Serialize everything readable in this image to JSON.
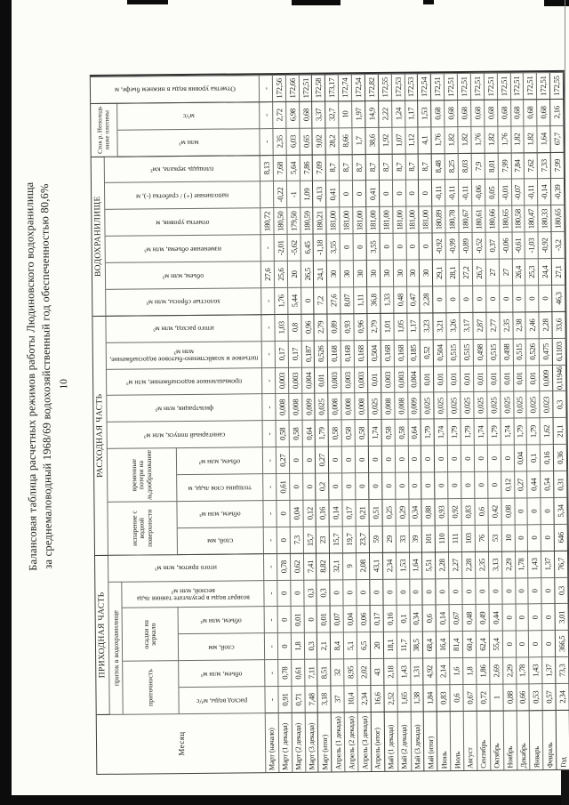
{
  "page_number": "10",
  "title": {
    "line1": "Балансовая таблица расчетных режимов работы Людиновского водохранилища",
    "line2": "за среднемаловодный 1968/69 водохозяйственный год обеспеченностью 80,6%"
  },
  "table": {
    "headers": {
      "month": "Месяц",
      "prihod": {
        "label": "ПРИХОДНАЯ ЧАСТЬ",
        "pritok_group": "приток в водохранилище",
        "pritochnost": "приточность",
        "rashod_vody": "расход воды, м³/с",
        "pritochnost_obem": "объем, млн м³",
        "osadki": "осадки на зеркало",
        "osadki_sloy": "слой, мм",
        "osadki_obem": "объем, млн м³",
        "vozvrat": "возврат воды в результате таяния льда весной, млн м³",
        "itogo_pritok": "итого приток, млн м³"
      },
      "rashod": {
        "label": "РАСХОДНАЯ ЧАСТЬ",
        "isparenie": "испарение с водной поверхности",
        "isp_sloy": "слой, мм",
        "isp_obem": "объем, млн м³",
        "poteri": "временные потери на льдообразование",
        "tolschina": "толщина слоя льда, м",
        "poteri_obem": "объем, млн м³",
        "sanitarny": "санитарный попуск, млн м³",
        "filtracia": "фильтрация, млн м³",
        "prom": "промышленное водоснабжение, млн м³",
        "pitevoe": "питьевое и хозяйственно-бытовое водоснабжение, млн м³",
        "itogo_rashod": "итого расход, млн м³"
      },
      "vdhr": {
        "label": "ВОДОХРАНИЛИЩЕ",
        "holostye": "холостые сбросы, млн м³",
        "obem": "объем, млн м³",
        "izmenenie": "изменение объема, млн м³",
        "otmetka": "отметка уровня, м",
        "napolnenie": "наполнение (+) / сработка (-), м",
        "ploschad": "площадь зеркала, км²"
      },
      "stok": {
        "label": "Сток р. Неполодь ниже плотины",
        "mln": "млн м³",
        "m3s": "м³/с"
      },
      "otmetka_bief": "Отметка уровня воды в нижнем бьефе, м"
    },
    "rows": [
      {
        "month": "Март (начало)",
        "values": [
          "-",
          "-",
          "-",
          "-",
          "-",
          "-",
          "-",
          "-",
          "-",
          "-",
          "-",
          "-",
          "-",
          "-",
          "-",
          "-",
          "27,6",
          "-",
          "180,72",
          "",
          "8,13",
          "-",
          "-",
          "-"
        ]
      },
      {
        "month": "Март (1 декада)",
        "values": [
          "0,91",
          "0,78",
          "0",
          "0",
          "0",
          "0,78",
          "0",
          "0",
          "0,61",
          "0,27",
          "0,58",
          "0,008",
          "0,003",
          "0,17",
          "1,03",
          "1,76",
          "25,6",
          "-2,01",
          "180,50",
          "-0,22",
          "7,68",
          "2,35",
          "2,72",
          "172,56"
        ]
      },
      {
        "month": "Март (2 декада)",
        "values": [
          "0,71",
          "0,61",
          "1,8",
          "0,01",
          "0",
          "0,62",
          "7,3",
          "0,04",
          "0",
          "0",
          "0,58",
          "0,008",
          "0,003",
          "0,17",
          "0,8",
          "5,44",
          "20",
          "-5,62",
          "179,50",
          "-1",
          "5,64",
          "6,03",
          "6,98",
          "172,66"
        ]
      },
      {
        "month": "Март (3 декада)",
        "values": [
          "7,48",
          "7,11",
          "0,3",
          "0",
          "0,3",
          "7,41",
          "15,7",
          "0,12",
          "0",
          "0",
          "0,64",
          "0,009",
          "0,004",
          "0,187",
          "0,96",
          "0",
          "26,5",
          "6,45",
          "180,59",
          "1,09",
          "7,86",
          "0,65",
          "0,68",
          "172,51"
        ]
      },
      {
        "month": "Март (итог)",
        "values": [
          "3,18",
          "8,51",
          "2,1",
          "0,01",
          "0,3",
          "8,82",
          "23",
          "0,16",
          "0,2",
          "0,27",
          "1,79",
          "0,025",
          "0,01",
          "0,526",
          "2,79",
          "7,2",
          "24,1",
          "-1,18",
          "180,21",
          "-0,13",
          "7,09",
          "9,02",
          "3,37",
          "172,58"
        ]
      },
      {
        "month": "Апрель (1 декада)",
        "values": [
          "37",
          "32",
          "8,4",
          "0,07",
          "0",
          "32,1",
          "15,7",
          "0,14",
          "0",
          "0",
          "0,58",
          "0,008",
          "0,003",
          "0,168",
          "0,89",
          "27,6",
          "30",
          "3,55",
          "181,00",
          "0,41",
          "8,7",
          "28,2",
          "32,7",
          "173,17"
        ]
      },
      {
        "month": "Апрель (2 декада)",
        "values": [
          "10,4",
          "8,95",
          "5,1",
          "0,04",
          "0",
          "9",
          "19,7",
          "0,17",
          "0",
          "0",
          "0,58",
          "0,008",
          "0,003",
          "0,168",
          "0,93",
          "8,07",
          "30",
          "0",
          "181,00",
          "0",
          "8,7",
          "8,66",
          "10",
          "172,74"
        ]
      },
      {
        "month": "Апрель (3 декада)",
        "values": [
          "2,34",
          "2,02",
          "6,5",
          "0,06",
          "0",
          "2,08",
          "23,7",
          "0,21",
          "0",
          "0",
          "0,58",
          "0,008",
          "0,003",
          "0,168",
          "0,96",
          "1,11",
          "30",
          "0",
          "181,00",
          "0",
          "8,7",
          "1,7",
          "1,97",
          "172,54"
        ]
      },
      {
        "month": "Апрель (итог)",
        "values": [
          "16,6",
          "43",
          "20",
          "0,17",
          "0",
          "43,1",
          "59",
          "0,51",
          "0",
          "0",
          "1,74",
          "0,025",
          "0,01",
          "0,504",
          "2,79",
          "36,8",
          "30",
          "3,55",
          "181,00",
          "0,41",
          "8,7",
          "38,6",
          "14,9",
          "172,82"
        ]
      },
      {
        "month": "Май (1 декада)",
        "values": [
          "2,52",
          "2,18",
          "18,1",
          "0,16",
          "0",
          "2,34",
          "29",
          "0,25",
          "0",
          "0",
          "0,58",
          "0,008",
          "0,003",
          "0,168",
          "1,01",
          "1,33",
          "30",
          "0",
          "181,00",
          "0",
          "8,7",
          "1,92",
          "2,22",
          "172,55"
        ]
      },
      {
        "month": "Май (2 декада)",
        "values": [
          "1,65",
          "1,43",
          "11,7",
          "0,1",
          "0",
          "1,53",
          "33",
          "0,29",
          "0",
          "0",
          "0,58",
          "0,008",
          "0,003",
          "0,168",
          "1,05",
          "0,48",
          "30",
          "0",
          "181,00",
          "0",
          "8,7",
          "1,07",
          "1,24",
          "172,53"
        ]
      },
      {
        "month": "Май (3 декада)",
        "values": [
          "1,38",
          "1,31",
          "38,5",
          "0,34",
          "0",
          "1,64",
          "39",
          "0,34",
          "0",
          "0",
          "0,64",
          "0,009",
          "0,004",
          "0,185",
          "1,17",
          "0,47",
          "30",
          "0",
          "181,00",
          "0",
          "8,7",
          "1,12",
          "1,17",
          "172,53"
        ]
      },
      {
        "month": "Май (итог)",
        "values": [
          "1,84",
          "4,92",
          "68,4",
          "0,6",
          "0",
          "5,51",
          "101",
          "0,88",
          "0",
          "0",
          "1,79",
          "0,025",
          "0,01",
          "0,52",
          "3,23",
          "2,28",
          "30",
          "0",
          "181,00",
          "0",
          "8,7",
          "4,1",
          "1,53",
          "172,54"
        ]
      },
      {
        "month": "Июнь",
        "values": [
          "0,83",
          "2,14",
          "16,4",
          "0,14",
          "0",
          "2,28",
          "110",
          "0,93",
          "0",
          "0",
          "1,74",
          "0,025",
          "0,01",
          "0,504",
          "3,21",
          "0",
          "29,1",
          "-0,92",
          "180,89",
          "-0,11",
          "8,48",
          "1,76",
          "0,68",
          "172,51"
        ]
      },
      {
        "month": "Июль",
        "values": [
          "0,6",
          "1,6",
          "81,4",
          "0,67",
          "0",
          "2,27",
          "111",
          "0,92",
          "0",
          "0",
          "1,79",
          "0,025",
          "0,01",
          "0,515",
          "3,26",
          "0",
          "28,1",
          "-0,99",
          "180,78",
          "-0,11",
          "8,25",
          "1,82",
          "0,68",
          "172,51"
        ]
      },
      {
        "month": "Август",
        "values": [
          "0,67",
          "1,8",
          "60,4",
          "0,48",
          "0",
          "2,28",
          "103",
          "0,83",
          "0",
          "0",
          "1,79",
          "0,025",
          "0,01",
          "0,515",
          "3,17",
          "0",
          "27,2",
          "-0,89",
          "180,67",
          "-0,11",
          "8,03",
          "1,82",
          "0,68",
          "172,51"
        ]
      },
      {
        "month": "Сентябрь",
        "values": [
          "0,72",
          "1,86",
          "62,4",
          "0,49",
          "0",
          "2,35",
          "76",
          "0,6",
          "0",
          "0",
          "1,74",
          "0,025",
          "0,01",
          "0,498",
          "2,87",
          "0",
          "26,7",
          "-0,52",
          "180,61",
          "-0,06",
          "7,9",
          "1,76",
          "0,68",
          "172,51"
        ]
      },
      {
        "month": "Октябрь",
        "values": [
          "1",
          "2,69",
          "55,4",
          "0,44",
          "0",
          "3,13",
          "53",
          "0,42",
          "0",
          "0",
          "1,79",
          "0,025",
          "0,01",
          "0,515",
          "2,77",
          "0",
          "27",
          "0,37",
          "180,66",
          "0,05",
          "8,01",
          "1,82",
          "0,68",
          "172,51"
        ]
      },
      {
        "month": "Ноябрь",
        "values": [
          "0,88",
          "2,29",
          "0",
          "0",
          "0",
          "2,29",
          "10",
          "0,08",
          "0,12",
          "0",
          "1,74",
          "0,025",
          "0,01",
          "0,498",
          "2,35",
          "0",
          "27",
          "-0,06",
          "180,65",
          "-0,01",
          "7,99",
          "1,76",
          "0,68",
          "172,51"
        ]
      },
      {
        "month": "Декабрь",
        "values": [
          "0,66",
          "1,78",
          "0",
          "0",
          "0",
          "1,78",
          "0",
          "0",
          "0,27",
          "0,04",
          "1,79",
          "0,025",
          "0,01",
          "0,515",
          "2,38",
          "0",
          "26,4",
          "-0,61",
          "180,58",
          "-0,07",
          "7,84",
          "1,82",
          "0,68",
          "172,51"
        ]
      },
      {
        "month": "Январь",
        "values": [
          "0,53",
          "1,43",
          "0",
          "0",
          "0",
          "1,43",
          "0",
          "0",
          "0,44",
          "0,1",
          "1,79",
          "0,025",
          "0,01",
          "0,526",
          "2,46",
          "0",
          "25,3",
          "-1,03",
          "180,47",
          "-0,11",
          "7,62",
          "1,82",
          "0,68",
          "172,51"
        ]
      },
      {
        "month": "Февраль",
        "values": [
          "0,57",
          "1,37",
          "0",
          "0",
          "0",
          "1,37",
          "0",
          "0",
          "0,54",
          "0,16",
          "1,62",
          "0,023",
          "0,009",
          "0,475",
          "2,28",
          "0",
          "24,4",
          "-0,92",
          "180,33",
          "-0,14",
          "7,33",
          "1,64",
          "0,68",
          "172,51"
        ]
      },
      {
        "month": "Год",
        "values": [
          "2,34",
          "73,3",
          "366,5",
          "3,01",
          "0,3",
          "76,7",
          "646",
          "5,34",
          "0,31",
          "0,36",
          "21,1",
          "0,3",
          "0,11946",
          "6,1103",
          "33,6",
          "46,3",
          "27,1",
          "-3,2",
          "180,65",
          "-0,39",
          "7,99",
          "67,7",
          "2,16",
          "172,55"
        ]
      }
    ]
  }
}
